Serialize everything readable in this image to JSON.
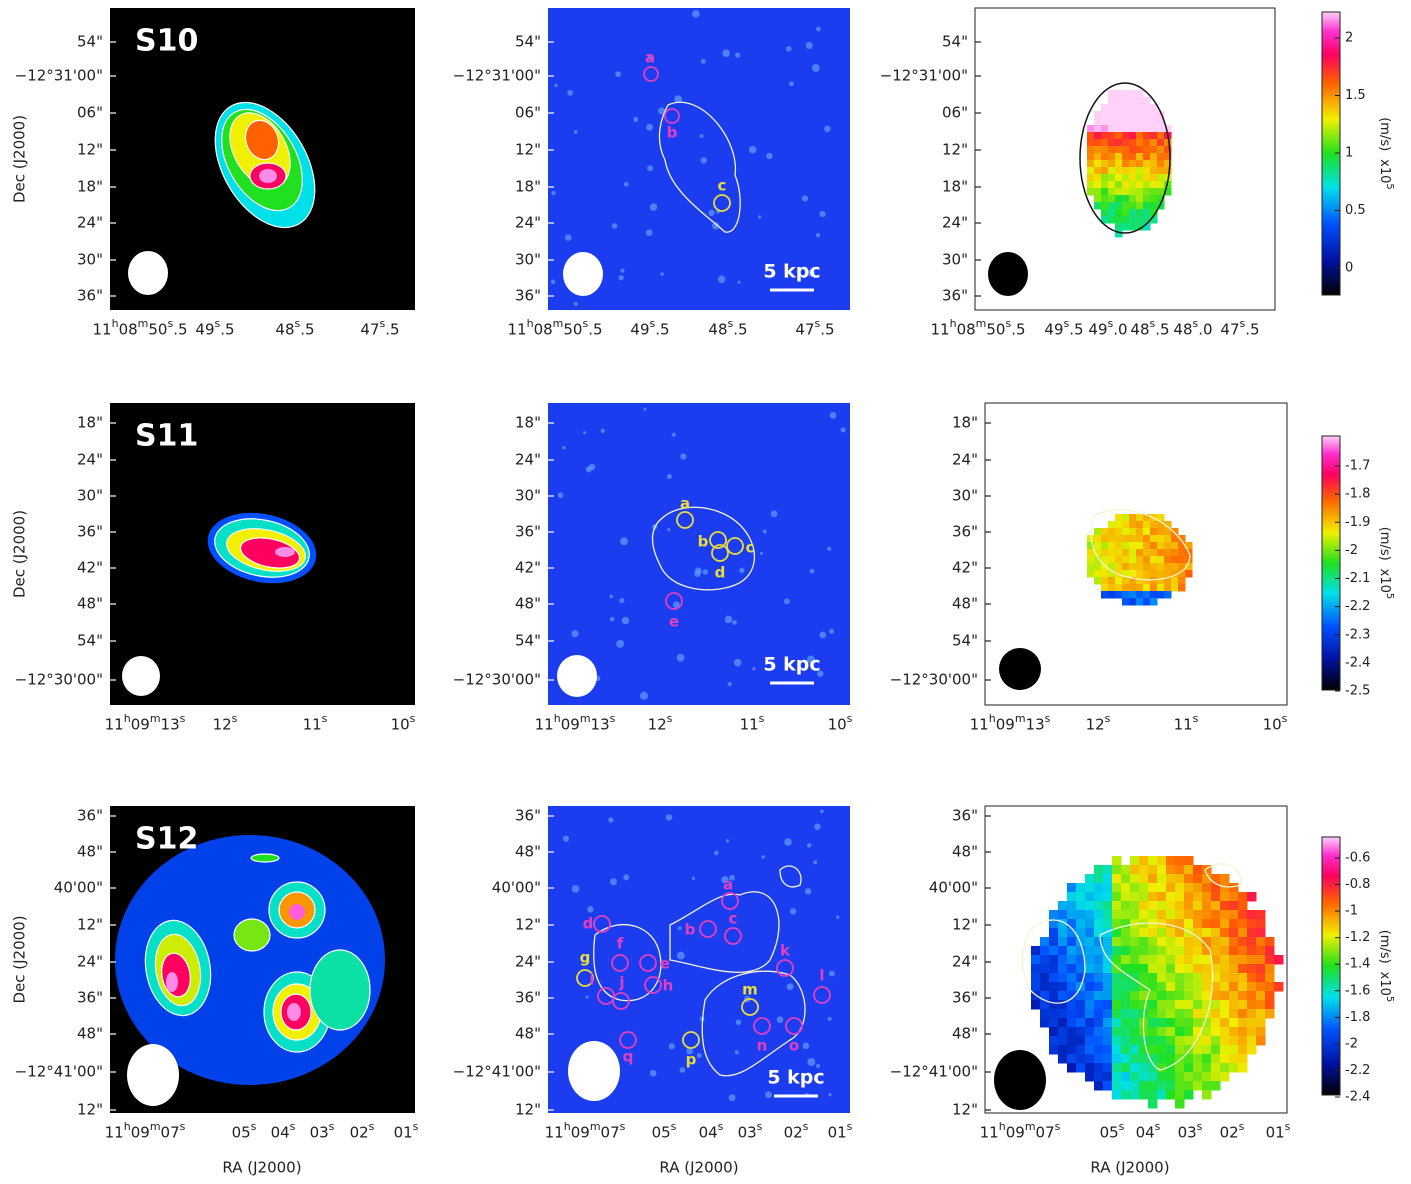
{
  "axis_labels": {
    "dec": "Dec (J2000)",
    "ra": "RA (J2000)"
  },
  "rows": [
    {
      "name": "S10",
      "dec_ticks": [
        "54\"",
        "−12°31'00\"",
        "06\"",
        "12\"",
        "18\"",
        "24\"",
        "30\"",
        "36\""
      ],
      "ra_ticks": [
        "11h08m50s.5",
        "49s.5",
        "48s.5",
        "47s.5"
      ],
      "ra_ticks_velocity": [
        "11h08m50s.5",
        "49s.5",
        "49s.0",
        "48s.5",
        "48s.0",
        "47s.5"
      ],
      "scale_bar": "5 kpc",
      "sources": [
        {
          "label": "a",
          "color": "#e040c0"
        },
        {
          "label": "b",
          "color": "#e040c0"
        },
        {
          "label": "c",
          "color": "#e8dc3c"
        }
      ],
      "colorbar": {
        "ticks": [
          2,
          1.5,
          1,
          0.5,
          0
        ],
        "unit": "(m/s)",
        "factor": "x10",
        "exponent": "5"
      }
    },
    {
      "name": "S11",
      "dec_ticks": [
        "18\"",
        "24\"",
        "30\"",
        "36\"",
        "42\"",
        "48\"",
        "54\"",
        "−12°30'00\""
      ],
      "ra_ticks": [
        "11h09m13s",
        "12s",
        "11s",
        "10s"
      ],
      "ra_ticks_velocity": [
        "11h09m13s",
        "12s",
        "11s",
        "10s"
      ],
      "scale_bar": "5 kpc",
      "sources": [
        {
          "label": "a",
          "color": "#e8dc3c"
        },
        {
          "label": "b",
          "color": "#e8dc3c"
        },
        {
          "label": "c",
          "color": "#e8dc3c"
        },
        {
          "label": "d",
          "color": "#e8dc3c"
        },
        {
          "label": "e",
          "color": "#e040c0"
        }
      ],
      "colorbar": {
        "ticks": [
          -1.7,
          -1.8,
          -1.9,
          -2,
          -2.1,
          -2.2,
          -2.3,
          -2.4,
          -2.5
        ],
        "unit": "(m/s)",
        "factor": "x10",
        "exponent": "5"
      }
    },
    {
      "name": "S12",
      "dec_ticks": [
        "36\"",
        "48\"",
        "40'00\"",
        "12\"",
        "24\"",
        "36\"",
        "48\"",
        "−12°41'00\"",
        "12\""
      ],
      "ra_ticks": [
        "11h09m07s",
        "05s",
        "04s",
        "03s",
        "02s",
        "01s"
      ],
      "ra_ticks_velocity": [
        "11h09m07s",
        "05s",
        "04s",
        "03s",
        "02s",
        "01s"
      ],
      "scale_bar": "5 kpc",
      "sources": [
        {
          "label": "a",
          "color": "#e040c0"
        },
        {
          "label": "b",
          "color": "#e040c0"
        },
        {
          "label": "c",
          "color": "#e040c0"
        },
        {
          "label": "d",
          "color": "#e040c0"
        },
        {
          "label": "e",
          "color": "#e040c0"
        },
        {
          "label": "f",
          "color": "#e040c0"
        },
        {
          "label": "g",
          "color": "#e8dc3c"
        },
        {
          "label": "h",
          "color": "#e040c0"
        },
        {
          "label": "i",
          "color": "#e040c0"
        },
        {
          "label": "j",
          "color": "#e040c0"
        },
        {
          "label": "k",
          "color": "#e040c0"
        },
        {
          "label": "l",
          "color": "#e040c0"
        },
        {
          "label": "m",
          "color": "#e8dc3c"
        },
        {
          "label": "n",
          "color": "#e040c0"
        },
        {
          "label": "o",
          "color": "#e040c0"
        },
        {
          "label": "p",
          "color": "#e8dc3c"
        },
        {
          "label": "q",
          "color": "#e040c0"
        }
      ],
      "colorbar": {
        "ticks": [
          -0.6,
          -0.8,
          -1,
          -1.2,
          -1.4,
          -1.6,
          -1.8,
          -2,
          -2.2,
          -2.4
        ],
        "unit": "(m/s)",
        "factor": "x10",
        "exponent": "5"
      }
    }
  ]
}
